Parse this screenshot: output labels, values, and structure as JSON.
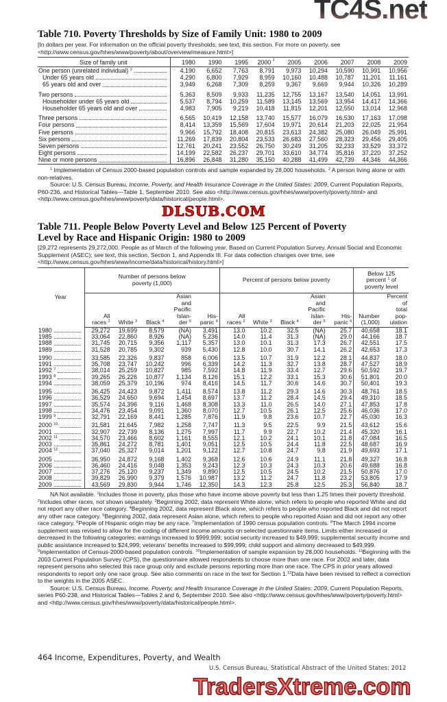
{
  "table710": {
    "title": "Table 710. Poverty Thresholds by Size of Family Unit: 1980 to 2009",
    "headnote": "[In dollars per year. For information on the official poverty thresholds; see text, this section. For more on poverty, see <http://www.census.gov/hhes/www/poverty/about/overview/measure.html>]",
    "columns": [
      {
        "label": "Size of family unit"
      },
      {
        "label": "1980"
      },
      {
        "label": "1990"
      },
      {
        "label": "1995"
      },
      {
        "label": "2000",
        "sup": "1"
      },
      {
        "label": "2005"
      },
      {
        "label": "2006"
      },
      {
        "label": "2007"
      },
      {
        "label": "2008"
      },
      {
        "label": "2009"
      }
    ],
    "rows": [
      {
        "label": "One person (unrelated individual)",
        "sup": "2",
        "indent": false,
        "group_start": false,
        "values": [
          "4,190",
          "6,652",
          "7,763",
          "8,791",
          "9,973",
          "10,294",
          "10,590",
          "10,991",
          "10,956"
        ]
      },
      {
        "label": "Under 65 years old",
        "indent": true,
        "values": [
          "4,290",
          "6,800",
          "7,929",
          "8,959",
          "10,160",
          "10,488",
          "10,787",
          "11,201",
          "11,161"
        ]
      },
      {
        "label": "65 years old and over",
        "indent": true,
        "values": [
          "3,949",
          "6,268",
          "7,309",
          "8,259",
          "9,367",
          "9,669",
          "9,944",
          "10,326",
          "10,289"
        ]
      },
      {
        "label": "Two persons",
        "group_start": true,
        "values": [
          "5,363",
          "8,509",
          "9,933",
          "11,235",
          "12,755",
          "13,167",
          "13,540",
          "14,051",
          "13,991"
        ]
      },
      {
        "label": "Householder under 65 years old",
        "indent": true,
        "values": [
          "5,537",
          "8,794",
          "10,259",
          "11,589",
          "13,145",
          "13,569",
          "13,954",
          "14,417",
          "14,366"
        ]
      },
      {
        "label": "Householder 65 years old and over",
        "indent": true,
        "values": [
          "4,983",
          "7,905",
          "9,219",
          "10,418",
          "11,815",
          "12,201",
          "12,550",
          "13,014",
          "12,968"
        ]
      },
      {
        "label": "Three persons",
        "group_start": true,
        "values": [
          "6,565",
          "10,419",
          "12,158",
          "13,740",
          "15,577",
          "16,079",
          "16,530",
          "17,163",
          "17,098"
        ]
      },
      {
        "label": "Four persons",
        "values": [
          "8,414",
          "13,359",
          "15,569",
          "17,604",
          "19,971",
          "20,614",
          "21,203",
          "22,025",
          "21,954"
        ]
      },
      {
        "label": "Five persons",
        "values": [
          "9,966",
          "15,792",
          "18,408",
          "20,815",
          "23,613",
          "24,382",
          "25,080",
          "26,049",
          "25,991"
        ]
      },
      {
        "label": "Six persons",
        "values": [
          "11,269",
          "17,839",
          "20,804",
          "23,533",
          "26,683",
          "27,560",
          "28,323",
          "29,456",
          "29,405"
        ]
      },
      {
        "label": "Seven persons",
        "values": [
          "12,761",
          "20,241",
          "23,552",
          "26,750",
          "30,249",
          "31,205",
          "32,233",
          "33,529",
          "33,372"
        ]
      },
      {
        "label": "Eight persons",
        "values": [
          "14,199",
          "22,582",
          "26,237",
          "29,701",
          "33,610",
          "34,774",
          "35,816",
          "37,220",
          "37,252"
        ]
      },
      {
        "label": "Nine or more persons",
        "values": [
          "16,896",
          "26,848",
          "31,280",
          "35,150",
          "40,288",
          "41,499",
          "42,739",
          "44,346",
          "44,366"
        ]
      }
    ],
    "footnotes": [
      {
        "sup": "1",
        "text": "Implementation of Census 2000-based population controls and sample expanded by 28,000 households."
      },
      {
        "sup": "2",
        "text": "A person living alone or with non-relatives."
      }
    ],
    "source": {
      "prefix": "Source: U.S. Census Bureau, ",
      "italic": "Income, Poverty, and Health Insurance Coverage in the United States: 2009",
      "suffix": ", Current Population Reports, P60-236, and Historical Tables—Table 1, September 2010. See also <http://www.census.gov/hhes/www/poverty/poverty.html> and <http://www.census.gov/hhes/www/poverty/data/historical/people.html>."
    }
  },
  "table711": {
    "title_line1": "Table 711. People Below Poverty Level and Below 125 Percent of Poverty",
    "title_line2": "Level by Race and Hispanic Origin: 1980 to 2009",
    "headnote": "[29,272 represents 29,272,000. People as of March of the following year. Based on Current Population Survey, Annual Social and Economic Supplement (ASEC); see text, this section, Section 1, and Appendix III. For data collection changes over time, see <http://www.census.gov/hhes/www/income/data/historical/history.html>]",
    "year_header": "Year",
    "group_number": "Number of persons below poverty (1,000)",
    "group_percent": "Percent of persons below poverty",
    "group_below125": {
      "pre": "Below 125 percent",
      "sup": "1",
      "post": "of poverty level"
    },
    "subcolumns": [
      {
        "label": "All races",
        "sup": "2"
      },
      {
        "label": "White",
        "sup": "3"
      },
      {
        "label": "Black",
        "sup": "4"
      },
      {
        "label": "Asian and Pacific Islan- der",
        "sup": "5"
      },
      {
        "label": "His- panic",
        "sup": "6"
      },
      {
        "label": "All races",
        "sup": "2"
      },
      {
        "label": "White",
        "sup": "3"
      },
      {
        "label": "Black",
        "sup": "4"
      },
      {
        "label": "Asian and Pacific Islan- der",
        "sup": "5"
      },
      {
        "label": "His- panic",
        "sup": "6"
      },
      {
        "label": "Number (1,000)"
      },
      {
        "label": "Percent of total pop- ulation"
      }
    ],
    "rows": [
      {
        "year": "1980",
        "values": [
          "29,272",
          "19,699",
          "8,579",
          "(NA)",
          "3,491",
          "13.0",
          "10.2",
          "32.5",
          "(NA)",
          "25.7",
          "40,658",
          "18.1"
        ]
      },
      {
        "year": "1985",
        "values": [
          "33,064",
          "22,860",
          "8,926",
          "(NA)",
          "5,236",
          "14.0",
          "11.4",
          "31.3",
          "(NA)",
          "29.0",
          "44,166",
          "18.7"
        ]
      },
      {
        "year": "1988",
        "values": [
          "31,745",
          "20,715",
          "9,356",
          "1,117",
          "5,357",
          "13.0",
          "10.1",
          "31.3",
          "17.3",
          "26.7",
          "42,551",
          "17.5"
        ]
      },
      {
        "year": "1989",
        "values": [
          "31,528",
          "20,785",
          "9,302",
          "939",
          "5,430",
          "12.8",
          "10.0",
          "30.7",
          "14.1",
          "26.2",
          "42,653",
          "17.3"
        ]
      },
      {
        "year": "1990",
        "group_start": true,
        "values": [
          "33,585",
          "22,326",
          "9,837",
          "858",
          "6,006",
          "13.5",
          "10.7",
          "31.9",
          "12.2",
          "28.1",
          "44,837",
          "18.0"
        ]
      },
      {
        "year": "1991",
        "values": [
          "35,708",
          "23,747",
          "10,242",
          "996",
          "6,339",
          "14.2",
          "11.3",
          "32.7",
          "13.8",
          "28.7",
          "47,527",
          "18.9"
        ]
      },
      {
        "year": "1992",
        "sup": "7",
        "values": [
          "38,014",
          "25,259",
          "10,827",
          "985",
          "7,592",
          "14.8",
          "11.9",
          "33.4",
          "12.7",
          "29.6",
          "50,592",
          "19.7"
        ]
      },
      {
        "year": "1993",
        "sup": "8",
        "values": [
          "39,265",
          "26,226",
          "10,877",
          "1,134",
          "8,126",
          "15.1",
          "12.2",
          "33.1",
          "15.3",
          "30.6",
          "51,801",
          "20.0"
        ]
      },
      {
        "year": "1994",
        "values": [
          "38,059",
          "25,379",
          "10,196",
          "974",
          "8,416",
          "14.5",
          "11.7",
          "30.6",
          "14.6",
          "30.7",
          "50,401",
          "19.3"
        ]
      },
      {
        "year": "1995",
        "group_start": true,
        "values": [
          "36,425",
          "24,423",
          "9,872",
          "1,411",
          "8,574",
          "13.8",
          "11.2",
          "29.3",
          "14.6",
          "30.3",
          "48,761",
          "18.5"
        ]
      },
      {
        "year": "1996",
        "values": [
          "36,529",
          "24,650",
          "9,694",
          "1,454",
          "8,697",
          "13.7",
          "11.2",
          "28.4",
          "14.5",
          "29.4",
          "49,310",
          "18.5"
        ]
      },
      {
        "year": "1997",
        "values": [
          "35,574",
          "24,396",
          "9,116",
          "1,468",
          "8,308",
          "13.3",
          "11.0",
          "26.5",
          "14.0",
          "27.1",
          "47,853",
          "17.8"
        ]
      },
      {
        "year": "1998",
        "values": [
          "34,476",
          "23,454",
          "9,091",
          "1,360",
          "8,070",
          "12.7",
          "10.5",
          "26.1",
          "12.5",
          "25.6",
          "46,036",
          "17.0"
        ]
      },
      {
        "year": "1999",
        "sup": "9",
        "values": [
          "32,791",
          "22,169",
          "8,441",
          "1,285",
          "7,876",
          "11.9",
          "9.8",
          "23.6",
          "10.7",
          "22.7",
          "45,030",
          "16.3"
        ]
      },
      {
        "year": "2000",
        "sup": "10",
        "group_start": true,
        "values": [
          "31,581",
          "21,645",
          "7,982",
          "1,258",
          "7,747",
          "11.3",
          "9.5",
          "22.5",
          "9.9",
          "21.5",
          "43,612",
          "15.6"
        ]
      },
      {
        "year": "2001",
        "values": [
          "32,907",
          "22,739",
          "8,136",
          "1,275",
          "7,997",
          "11.7",
          "9.9",
          "22.7",
          "10.2",
          "21.4",
          "45,320",
          "16.1"
        ]
      },
      {
        "year": "2002",
        "sup": "11",
        "values": [
          "34,570",
          "23,466",
          "8,602",
          "1,161",
          "8,555",
          "12.1",
          "10.2",
          "24.1",
          "10.1",
          "21.8",
          "47,084",
          "16.5"
        ]
      },
      {
        "year": "2003",
        "values": [
          "35,861",
          "24,272",
          "8,781",
          "1,401",
          "9,051",
          "12.5",
          "10.5",
          "24.4",
          "11.8",
          "22.5",
          "48,687",
          "16.9"
        ]
      },
      {
        "year": "2004",
        "sup": "12",
        "values": [
          "37,040",
          "25,327",
          "9,014",
          "1,201",
          "9,122",
          "12.7",
          "10.8",
          "24.7",
          "9.8",
          "21.9",
          "49,693",
          "17.1"
        ]
      },
      {
        "year": "2005",
        "group_start": true,
        "values": [
          "36,950",
          "24,872",
          "9,168",
          "1,402",
          "9,368",
          "12.6",
          "10.6",
          "24.9",
          "11.1",
          "21.8",
          "49,327",
          "16.8"
        ]
      },
      {
        "year": "2006",
        "values": [
          "36,460",
          "24,416",
          "9,048",
          "1,353",
          "9,243",
          "12.3",
          "10.3",
          "24.3",
          "10.3",
          "20.6",
          "49,688",
          "16.8"
        ]
      },
      {
        "year": "2007",
        "values": [
          "37,276",
          "25,120",
          "9,237",
          "1,349",
          "9,890",
          "12.5",
          "10.5",
          "24.5",
          "10.2",
          "21.5",
          "50,876",
          "17.0"
        ]
      },
      {
        "year": "2008",
        "values": [
          "39,829",
          "26,990",
          "9,379",
          "1,576",
          "10,987",
          "13.2",
          "11.2",
          "24.7",
          "11.8",
          "23.2",
          "53,805",
          "17.9"
        ]
      },
      {
        "year": "2009",
        "values": [
          "43,569",
          "29,830",
          "9,944",
          "1,746",
          "12,350",
          "14.3",
          "12.3",
          "25.8",
          "12.5",
          "25.3",
          "56,840",
          "18.7"
        ]
      }
    ],
    "footnotes": [
      {
        "sup": "",
        "text": "NA Not available. "
      },
      {
        "sup": "1",
        "text": "Includes those in poverty, plus those who have income above poverty but less than 1.25 times their poverty threshold. "
      },
      {
        "sup": "2",
        "text": "Includes other races, not shown separately. "
      },
      {
        "sup": "3",
        "text": "Beginning 2002, data represent White alone, which refers to people who reported White and did not report any other race category. "
      },
      {
        "sup": "4",
        "text": "Beginning 2002, data represent Black alone, which refers to people who reported Black and did not report any other race category. "
      },
      {
        "sup": "5",
        "text": "Beginning 2002, data represent Asian alone, which refers to people who reported Asian and did not report any other race category. "
      },
      {
        "sup": "6",
        "text": "People of Hispanic origin may be any race. "
      },
      {
        "sup": "7",
        "text": "Implementation of 1990 census population controls. "
      },
      {
        "sup": "8",
        "text": "The March 1994 income supplement was revised to allow for the coding of different income amounts on selected questionnaire items. Limits either increased or decreased in the following categories: earnings increased to $999,999; social security increased to $49,999; supplemental security income and public assistance increased to $24,999; veterans' benefits increased to $99,999; child support and alimony decreased to $49,999. "
      },
      {
        "sup": "9",
        "text": "Implementation of Census-2000-based population controls. "
      },
      {
        "sup": "10",
        "text": "Implementation of sample expansion by 28,000 households. "
      },
      {
        "sup": "11",
        "text": "Beginning with the 2003 Current Population Survey (CPS), the questionnaire allowed respondents to choose more than one race. For 2002 and later, data represent persons who selected this race group only and exclude persons reporting more than one race. The CPS in prior years allowed respondents to report only one race group. See also comments on race in the text for Section 1."
      },
      {
        "sup": "12",
        "text": "Data have been revised to reflect a correction to the weights in the 2005 ASEC."
      }
    ],
    "source": {
      "prefix": "Source: U.S. Census Bureau, ",
      "italic": "Income, Poverty, and Health Insurance Coverage in the United States: 2009",
      "suffix": ", Current Population Reports, series P60-238, and Historical Tables—Tables 2 and 6, September 2010. See also <http://www.census.gov/hhes/www/poverty/poverty.html> and <http://www.census.gov/hhes/www/poverty/data/historical/people.html>."
    }
  },
  "footer": {
    "page_section": "464  Income, Expenditures, Poverty, and Wealth",
    "publication": "U.S. Census Bureau, Statistical Abstract of the United States: 2012"
  },
  "watermarks": {
    "top": "TC4S.net",
    "middle": "DLSUB.COM",
    "bottom": "TradersXtreme.com"
  }
}
